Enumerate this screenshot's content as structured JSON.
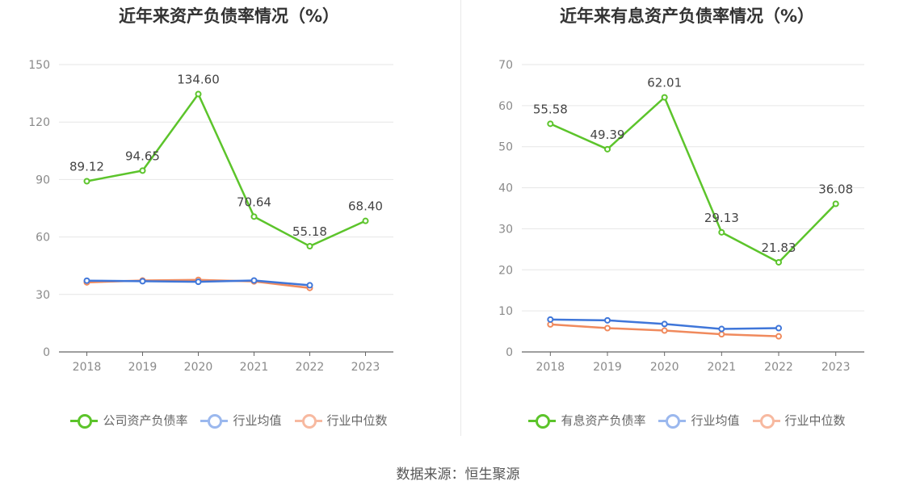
{
  "charts": [
    {
      "title": "近年来资产负债率情况（%）",
      "legend": [
        "公司资产负债率",
        "行业均值",
        "行业中位数"
      ]
    },
    {
      "title": "近年来有息资产负债率情况（%）",
      "legend": [
        "有息资产负债率",
        "行业均值",
        "行业中位数"
      ]
    }
  ],
  "source": "数据来源：恒生聚源",
  "chart_data": [
    {
      "type": "line",
      "title": "近年来资产负债率情况（%）",
      "categories": [
        "2018",
        "2019",
        "2020",
        "2021",
        "2022",
        "2023"
      ],
      "ylim": [
        0,
        150
      ],
      "yticks": [
        0,
        30,
        60,
        90,
        120,
        150
      ],
      "grid": true,
      "legend_position": "bottom",
      "series": [
        {
          "name": "公司资产负债率",
          "color": "#5cc42b",
          "labels": true,
          "values": [
            89.12,
            94.65,
            134.6,
            70.64,
            55.18,
            68.4
          ],
          "label_text": [
            "89.12",
            "94.65",
            "134.60",
            "70.64",
            "55.18",
            "68.40"
          ]
        },
        {
          "name": "行业均值",
          "color": "#3f76d9",
          "values": [
            37.2,
            36.9,
            36.6,
            37.3,
            34.8,
            null
          ]
        },
        {
          "name": "行业中位数",
          "color": "#f08a5d",
          "values": [
            36.3,
            37.3,
            37.6,
            36.8,
            33.4,
            null
          ]
        }
      ]
    },
    {
      "type": "line",
      "title": "近年来有息资产负债率情况（%）",
      "categories": [
        "2018",
        "2019",
        "2020",
        "2021",
        "2022",
        "2023"
      ],
      "ylim": [
        0,
        70
      ],
      "yticks": [
        0,
        10,
        20,
        30,
        40,
        50,
        60,
        70
      ],
      "grid": true,
      "legend_position": "bottom",
      "series": [
        {
          "name": "有息资产负债率",
          "color": "#5cc42b",
          "labels": true,
          "values": [
            55.58,
            49.39,
            62.01,
            29.13,
            21.83,
            36.08
          ],
          "label_text": [
            "55.58",
            "49.39",
            "62.01",
            "29.13",
            "21.83",
            "36.08"
          ]
        },
        {
          "name": "行业均值",
          "color": "#3f76d9",
          "values": [
            7.9,
            7.7,
            6.8,
            5.6,
            5.8,
            null
          ]
        },
        {
          "name": "行业中位数",
          "color": "#f08a5d",
          "values": [
            6.7,
            5.8,
            5.2,
            4.3,
            3.8,
            null
          ]
        }
      ]
    }
  ]
}
